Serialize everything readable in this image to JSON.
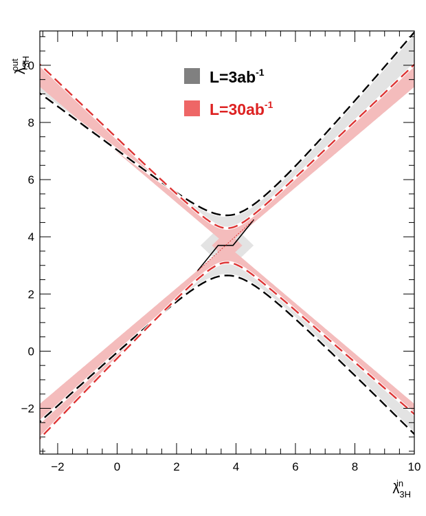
{
  "chart_data": {
    "type": "contour",
    "xlabel": {
      "symbol": "λ",
      "sub": "3H",
      "sup": "in"
    },
    "ylabel": {
      "symbol": "λ",
      "sub": "3H",
      "sup": "out"
    },
    "xlim": [
      -2.6,
      10
    ],
    "ylim": [
      -3.6,
      11.2
    ],
    "xticks": [
      "−2",
      "0",
      "2",
      "4",
      "6",
      "8",
      "10"
    ],
    "yticks": [
      "−2",
      "0",
      "2",
      "4",
      "6",
      "8",
      "10"
    ],
    "xtick_values": [
      -2,
      0,
      2,
      4,
      6,
      8,
      10
    ],
    "ytick_values": [
      -2,
      0,
      2,
      4,
      6,
      8,
      10
    ],
    "true_value": 3.7,
    "legend": [
      {
        "base": "L=3ab",
        "sup": "-1",
        "color": "#808080",
        "text_color": "#000000"
      },
      {
        "base": "L=30ab",
        "sup": "-1",
        "color": "#ee6666",
        "text_color": "#dd2222"
      }
    ],
    "series": [
      {
        "level": "3ab-1",
        "band_fill": "#e3e3e3",
        "line_color": "#000000",
        "upper_min": 4.75,
        "lower_max": 2.65,
        "asym_upper": 0.25,
        "asym_lower": -0.05
      },
      {
        "level": "30ab-1",
        "band_fill": "#f4bcbc",
        "line_color": "#dd3333",
        "upper_min": 4.3,
        "lower_max": 3.1,
        "asym_upper": 0.0,
        "asym_lower": 0.1
      }
    ]
  }
}
